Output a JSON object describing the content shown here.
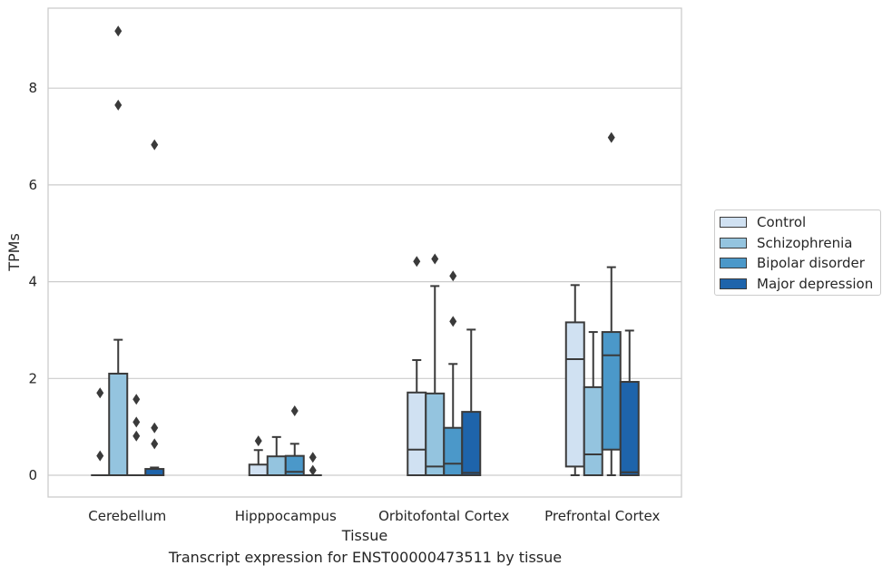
{
  "chart_data": {
    "type": "box",
    "title": "",
    "caption": "Transcript expression for ENST00000473511 by tissue",
    "xlabel": "Tissue",
    "ylabel": "TPMs",
    "ylim": [
      -0.45,
      9.7
    ],
    "yticks": [
      0,
      2,
      4,
      6,
      8
    ],
    "grid": "horizontal",
    "legend_position": "right",
    "categories": [
      "Cerebellum",
      "Hipppocampus",
      "Orbitofontal Cortex",
      "Prefrontal Cortex"
    ],
    "series": [
      {
        "name": "Control",
        "color": "#d0e1f2",
        "boxes": [
          {
            "whislo": 0,
            "q1": 0,
            "med": 0,
            "q3": 0,
            "whishi": 0,
            "fliers": [
              0.4,
              1.7
            ]
          },
          {
            "whislo": 0,
            "q1": 0,
            "med": 0,
            "q3": 0.22,
            "whishi": 0.52,
            "fliers": [
              0.71
            ]
          },
          {
            "whislo": 0,
            "q1": 0,
            "med": 0.53,
            "q3": 1.71,
            "whishi": 2.38,
            "fliers": [
              4.42
            ]
          },
          {
            "whislo": 0,
            "q1": 0.18,
            "med": 2.4,
            "q3": 3.16,
            "whishi": 3.93,
            "fliers": []
          }
        ]
      },
      {
        "name": "Schizophrenia",
        "color": "#94c4df",
        "boxes": [
          {
            "whislo": 0,
            "q1": 0,
            "med": 0,
            "q3": 2.1,
            "whishi": 2.8,
            "fliers": [
              7.65,
              9.18
            ]
          },
          {
            "whislo": 0,
            "q1": 0,
            "med": 0,
            "q3": 0.39,
            "whishi": 0.79,
            "fliers": []
          },
          {
            "whislo": 0,
            "q1": 0,
            "med": 0.18,
            "q3": 1.69,
            "whishi": 3.91,
            "fliers": [
              4.47
            ]
          },
          {
            "whislo": 0,
            "q1": 0,
            "med": 0.43,
            "q3": 1.82,
            "whishi": 2.96,
            "fliers": []
          }
        ]
      },
      {
        "name": "Bipolar disorder",
        "color": "#4b98c9",
        "boxes": [
          {
            "whislo": 0,
            "q1": 0,
            "med": 0,
            "q3": 0,
            "whishi": 0,
            "fliers": [
              0.81,
              1.1,
              1.57
            ]
          },
          {
            "whislo": 0,
            "q1": 0,
            "med": 0.07,
            "q3": 0.4,
            "whishi": 0.65,
            "fliers": [
              1.33
            ]
          },
          {
            "whislo": 0,
            "q1": 0,
            "med": 0.24,
            "q3": 0.98,
            "whishi": 2.3,
            "fliers": [
              3.18,
              4.12
            ]
          },
          {
            "whislo": 0,
            "q1": 0.53,
            "med": 2.48,
            "q3": 2.96,
            "whishi": 4.3,
            "fliers": [
              6.98
            ]
          }
        ]
      },
      {
        "name": "Major depression",
        "color": "#1e64ab",
        "boxes": [
          {
            "whislo": 0,
            "q1": 0,
            "med": 0,
            "q3": 0.13,
            "whishi": 0.16,
            "fliers": [
              0.65,
              0.98,
              6.83
            ]
          },
          {
            "whislo": 0,
            "q1": 0,
            "med": 0,
            "q3": 0,
            "whishi": 0,
            "fliers": [
              0.1,
              0.37
            ]
          },
          {
            "whislo": 0,
            "q1": 0,
            "med": 0.05,
            "q3": 1.31,
            "whishi": 3.01,
            "fliers": []
          },
          {
            "whislo": 0,
            "q1": 0,
            "med": 0.06,
            "q3": 1.93,
            "whishi": 2.99,
            "fliers": []
          }
        ]
      }
    ]
  }
}
